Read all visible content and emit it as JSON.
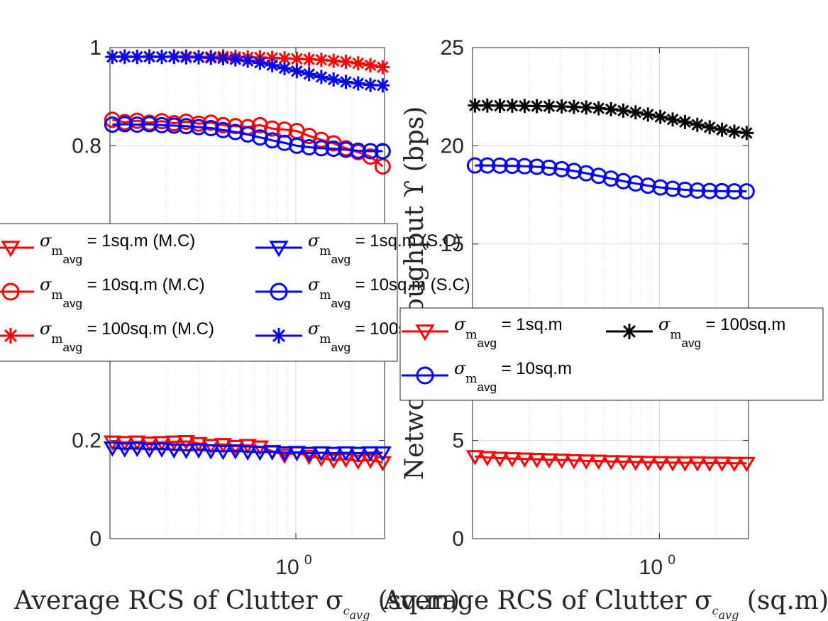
{
  "chart_data": [
    {
      "type": "line",
      "xscale": "log",
      "xlim": [
        0.1,
        3.0
      ],
      "ylim": [
        0,
        1
      ],
      "grid": true,
      "xticks": [
        {
          "value": 1,
          "base": "10",
          "exp": "0"
        }
      ],
      "yticks": [
        {
          "value": 0,
          "label": "0"
        },
        {
          "value": 0.2,
          "label": "0.2"
        },
        {
          "value": 0.8,
          "label": "0.8"
        },
        {
          "value": 1,
          "label": "1"
        }
      ],
      "xlabel": {
        "text": "Average RCS of Clutter σ",
        "sub": "c",
        "subsub": "avg",
        "tail": " (sq.m)"
      },
      "ylabel": "",
      "x": [
        0.103,
        0.12,
        0.14,
        0.163,
        0.19,
        0.221,
        0.257,
        0.3,
        0.349,
        0.406,
        0.473,
        0.551,
        0.641,
        0.746,
        0.869,
        1.012,
        1.178,
        1.371,
        1.596,
        1.858,
        2.163,
        2.518,
        2.931
      ],
      "legend": {
        "placement": "middle-left",
        "columns": 2,
        "entries": [
          {
            "prefix": "σ",
            "sub": "m",
            "subsub": "avg",
            "text": " = 1sq.m (M.C)",
            "color": "#ff0000",
            "marker": "triangle"
          },
          {
            "prefix": "σ",
            "sub": "m",
            "subsub": "avg",
            "text": " = 10sq.m (M.C)",
            "color": "#ff0000",
            "marker": "circle"
          },
          {
            "prefix": "σ",
            "sub": "m",
            "subsub": "avg",
            "text": " = 100sq.m (M.C)",
            "color": "#ff0000",
            "marker": "star"
          },
          {
            "prefix": "σ",
            "sub": "m",
            "subsub": "avg",
            "text": " = 1sq.m (S.C)",
            "color": "#0000ff",
            "marker": "triangle"
          },
          {
            "prefix": "σ",
            "sub": "m",
            "subsub": "avg",
            "text": " = 10sq.m (S.C)",
            "color": "#0000ff",
            "marker": "circle"
          },
          {
            "prefix": "σ",
            "sub": "m",
            "subsub": "avg",
            "text": " = 100sq.m (S.C)",
            "color": "#0000ff",
            "marker": "star"
          }
        ]
      },
      "series": [
        {
          "color": "#ff0000",
          "marker": "triangle",
          "values": [
            0.197,
            0.196,
            0.197,
            0.195,
            0.196,
            0.197,
            0.198,
            0.194,
            0.19,
            0.192,
            0.188,
            0.19,
            0.187,
            0.178,
            0.17,
            0.175,
            0.168,
            0.164,
            0.16,
            0.162,
            0.158,
            0.16,
            0.155
          ]
        },
        {
          "color": "#ff0000",
          "marker": "circle",
          "values": [
            0.853,
            0.848,
            0.851,
            0.847,
            0.85,
            0.846,
            0.849,
            0.845,
            0.847,
            0.842,
            0.84,
            0.838,
            0.842,
            0.835,
            0.833,
            0.83,
            0.82,
            0.812,
            0.805,
            0.795,
            0.787,
            0.778,
            0.758
          ]
        },
        {
          "color": "#ff0000",
          "marker": "star",
          "values": [
            0.981,
            0.982,
            0.981,
            0.982,
            0.981,
            0.982,
            0.982,
            0.981,
            0.981,
            0.982,
            0.981,
            0.98,
            0.98,
            0.979,
            0.978,
            0.977,
            0.976,
            0.975,
            0.973,
            0.971,
            0.968,
            0.964,
            0.96
          ]
        },
        {
          "color": "#0000ff",
          "marker": "triangle",
          "values": [
            0.185,
            0.183,
            0.184,
            0.182,
            0.183,
            0.181,
            0.18,
            0.181,
            0.179,
            0.178,
            0.179,
            0.177,
            0.176,
            0.177,
            0.175,
            0.176,
            0.174,
            0.175,
            0.174,
            0.175,
            0.174,
            0.175,
            0.175
          ]
        },
        {
          "color": "#0000ff",
          "marker": "circle",
          "values": [
            0.843,
            0.844,
            0.843,
            0.844,
            0.842,
            0.841,
            0.84,
            0.838,
            0.836,
            0.832,
            0.828,
            0.823,
            0.817,
            0.811,
            0.806,
            0.8,
            0.797,
            0.795,
            0.794,
            0.792,
            0.79,
            0.789,
            0.789
          ]
        },
        {
          "color": "#0000ff",
          "marker": "star",
          "values": [
            0.981,
            0.981,
            0.981,
            0.981,
            0.981,
            0.981,
            0.98,
            0.98,
            0.979,
            0.978,
            0.976,
            0.973,
            0.969,
            0.964,
            0.958,
            0.952,
            0.946,
            0.94,
            0.935,
            0.93,
            0.927,
            0.924,
            0.923
          ]
        }
      ]
    },
    {
      "type": "line",
      "xscale": "log",
      "xlim": [
        0.1,
        3.0
      ],
      "ylim": [
        0,
        25
      ],
      "grid": true,
      "xticks": [
        {
          "value": 1,
          "base": "10",
          "exp": "0"
        }
      ],
      "yticks": [
        {
          "value": 0,
          "label": "0"
        },
        {
          "value": 5,
          "label": "5"
        },
        {
          "value": 15,
          "label": "15"
        },
        {
          "value": 20,
          "label": "20"
        },
        {
          "value": 25,
          "label": "25"
        }
      ],
      "xlabel": {
        "text": "Average RCS of Clutter σ",
        "sub": "c",
        "subsub": "avg",
        "tail": " (sq.m)"
      },
      "ylabel": "Network Throughput ϒ (bps)",
      "x": [
        0.103,
        0.12,
        0.14,
        0.163,
        0.19,
        0.221,
        0.257,
        0.3,
        0.349,
        0.406,
        0.473,
        0.551,
        0.641,
        0.746,
        0.869,
        1.012,
        1.178,
        1.371,
        1.596,
        1.858,
        2.163,
        2.518,
        2.931
      ],
      "legend": {
        "placement": "middle-right",
        "columns": 2,
        "entries": [
          {
            "prefix": "σ",
            "sub": "m",
            "subsub": "avg",
            "text": " = 1sq.m",
            "color": "#ff0000",
            "marker": "triangle"
          },
          {
            "prefix": "σ",
            "sub": "m",
            "subsub": "avg",
            "text": " = 10sq.m",
            "color": "#0000ff",
            "marker": "circle"
          },
          {
            "prefix": "σ",
            "sub": "m",
            "subsub": "avg",
            "text": " = 100sq.m",
            "color": "#000000",
            "marker": "star"
          }
        ]
      },
      "series": [
        {
          "color": "#ff0000",
          "marker": "triangle",
          "values": [
            4.18,
            4.13,
            4.1,
            4.08,
            4.06,
            4.04,
            4.02,
            4.0,
            3.98,
            3.96,
            3.95,
            3.93,
            3.92,
            3.9,
            3.89,
            3.88,
            3.87,
            3.86,
            3.86,
            3.85,
            3.85,
            3.84,
            3.84
          ]
        },
        {
          "color": "#0000ff",
          "marker": "circle",
          "values": [
            19.0,
            19.0,
            18.99,
            18.98,
            18.96,
            18.93,
            18.88,
            18.81,
            18.72,
            18.6,
            18.47,
            18.33,
            18.2,
            18.08,
            17.97,
            17.88,
            17.81,
            17.76,
            17.72,
            17.7,
            17.69,
            17.68,
            17.68
          ]
        },
        {
          "color": "#000000",
          "marker": "star",
          "values": [
            22.05,
            22.05,
            22.04,
            22.04,
            22.03,
            22.02,
            22.01,
            22.0,
            21.98,
            21.95,
            21.91,
            21.86,
            21.79,
            21.7,
            21.59,
            21.47,
            21.34,
            21.21,
            21.07,
            20.94,
            20.82,
            20.72,
            20.65
          ]
        }
      ]
    }
  ]
}
